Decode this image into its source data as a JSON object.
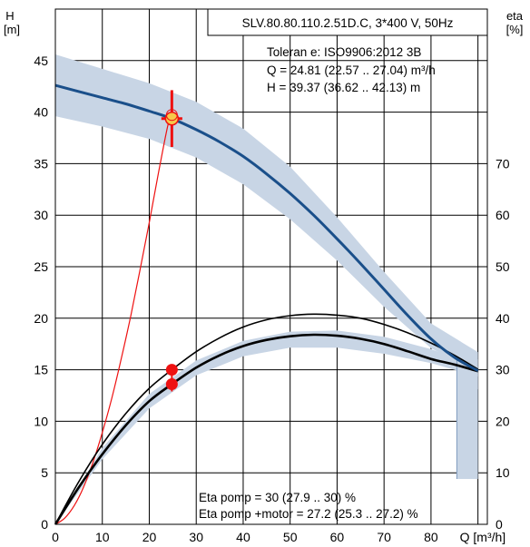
{
  "chart_data": {
    "type": "line",
    "left_axis": {
      "label_line1": "H",
      "label_line2": "[m]",
      "range": [
        0,
        50
      ],
      "ticks": [
        0,
        5,
        10,
        15,
        20,
        25,
        30,
        35,
        40,
        45
      ]
    },
    "right_axis": {
      "label_line1": "eta",
      "label_line2": "[%]",
      "range": [
        0,
        100
      ],
      "ticks": [
        0,
        10,
        20,
        30,
        40,
        50,
        60,
        70
      ]
    },
    "x_axis": {
      "label": "Q [m³/h]",
      "range": [
        0,
        92
      ],
      "ticks": [
        0,
        10,
        20,
        30,
        40,
        50,
        60,
        70,
        80,
        90
      ],
      "tick_labels": [
        "0",
        "10",
        "20",
        "30",
        "40",
        "50",
        "60",
        "70",
        "80",
        ""
      ]
    },
    "grid": true,
    "title_box": "SLV.80.80.110.2.51D.C, 3*400 V, 50Hz",
    "info_lines": [
      "Toleran e: ISO9906:2012 3B",
      "Q = 24.81 (22.57 .. 27.04) m³/h",
      "H = 39.37 (36.62 .. 42.13) m"
    ],
    "efficiency_lines": [
      "Eta pomp   = 30 (27.9 .. 30) %",
      "Eta pomp  +motor = 27.2 (25.3 .. 27.2) %"
    ],
    "colors": {
      "head_curve": "#1a4f8a",
      "tolerance_band": "#c8d5e5",
      "duty_point": "#ee1111",
      "system_curve": "#ee1111",
      "efficiency_curves": "#000000"
    },
    "series": [
      {
        "role": "head",
        "axis": "left",
        "x": [
          0,
          5,
          10,
          15,
          20,
          24.81,
          30,
          35,
          40,
          45,
          50,
          55,
          60,
          65,
          70,
          75,
          80,
          85,
          90
        ],
        "y": [
          42.6,
          42.0,
          41.4,
          40.8,
          40.1,
          39.37,
          38.3,
          37.1,
          35.7,
          34.0,
          32.1,
          30.0,
          27.7,
          25.3,
          22.8,
          20.3,
          18.0,
          16.2,
          14.9
        ]
      },
      {
        "role": "head-tolerance-upper",
        "axis": "left",
        "x": [
          0,
          10,
          20,
          30,
          40,
          50,
          60,
          70,
          80,
          90
        ],
        "y": [
          45.6,
          44.2,
          42.8,
          41.0,
          38.4,
          34.7,
          29.8,
          24.5,
          19.5,
          16.7
        ]
      },
      {
        "role": "head-tolerance-lower",
        "axis": "left",
        "x": [
          0,
          10,
          20,
          30,
          40,
          50,
          60,
          70,
          80,
          82,
          90
        ],
        "y": [
          39.6,
          38.6,
          37.4,
          35.6,
          33.0,
          29.6,
          25.6,
          21.1,
          17.1,
          16.6,
          13.1
        ]
      },
      {
        "role": "system-curve",
        "axis": "left",
        "x": [
          0,
          2,
          4,
          6,
          8,
          10,
          12,
          14,
          16,
          18,
          20,
          22,
          24,
          24.81
        ],
        "y": [
          0,
          0.6,
          1.8,
          3.6,
          6.0,
          8.9,
          12.2,
          16.0,
          20.1,
          24.6,
          29.3,
          34.2,
          38.8,
          39.37
        ]
      },
      {
        "role": "eta-pump",
        "axis": "right",
        "x": [
          0,
          5,
          10,
          15,
          20,
          24.81,
          30,
          35,
          40,
          45,
          50,
          55,
          60,
          65,
          70,
          75,
          80,
          85,
          90
        ],
        "y": [
          0,
          8.3,
          15.5,
          21.5,
          26.4,
          30.0,
          33.5,
          36.2,
          38.3,
          39.7,
          40.5,
          40.8,
          40.6,
          40.0,
          38.8,
          37.2,
          35.2,
          32.8,
          30.1
        ]
      },
      {
        "role": "eta-pump-motor",
        "axis": "right",
        "x": [
          0,
          5,
          10,
          15,
          20,
          24.81,
          30,
          35,
          40,
          45,
          50,
          55,
          60,
          65,
          70,
          75,
          80,
          85,
          90
        ],
        "y": [
          0,
          7.2,
          13.6,
          19.2,
          23.9,
          27.2,
          30.4,
          32.8,
          34.6,
          35.8,
          36.5,
          36.8,
          36.6,
          36.0,
          35.0,
          33.6,
          32.1,
          31.0,
          29.7
        ]
      },
      {
        "role": "eta-tolerance-upper",
        "axis": "right",
        "x": [
          0,
          10,
          20,
          30,
          40,
          50,
          60,
          70,
          80,
          90
        ],
        "y": [
          0,
          14.8,
          25.3,
          31.8,
          35.6,
          37.4,
          37.6,
          36.4,
          34.0,
          30.6
        ]
      },
      {
        "role": "eta-tolerance-lower",
        "axis": "right",
        "x": [
          0,
          10,
          20,
          30,
          40,
          50,
          60,
          70,
          80,
          90
        ],
        "y": [
          0,
          12.6,
          22.5,
          28.9,
          32.6,
          34.3,
          34.3,
          33.1,
          31.3,
          28.7
        ]
      }
    ],
    "duty_point": {
      "q": 24.81,
      "h": 39.37,
      "q_range": [
        22.57,
        27.04
      ],
      "h_range": [
        36.62,
        42.13
      ]
    },
    "eta_points": [
      {
        "q": 24.81,
        "eta": 30
      },
      {
        "q": 24.81,
        "eta": 27.2
      }
    ]
  }
}
